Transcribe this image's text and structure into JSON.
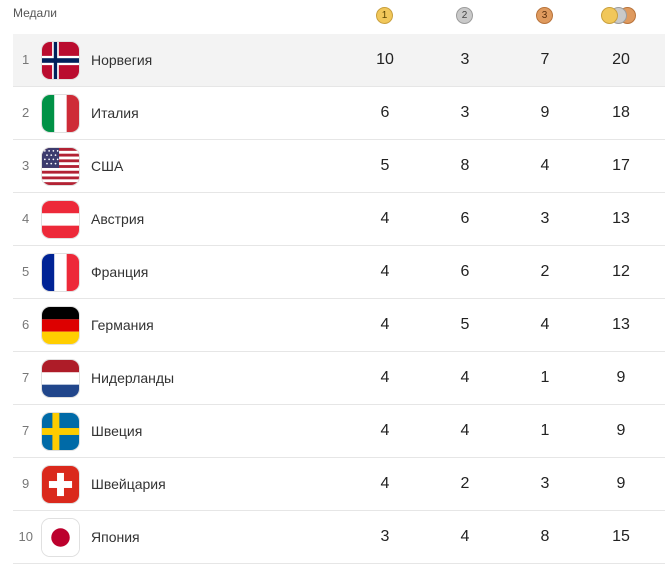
{
  "header": {
    "title": "Медали",
    "gold_label": "1",
    "silver_label": "2",
    "bronze_label": "3"
  },
  "colors": {
    "gold": "#f1c75a",
    "silver": "#c9c9c9",
    "bronze": "#df9a5e",
    "highlight_row": "#f3f3f3"
  },
  "rows": [
    {
      "rank": "1",
      "country": "Норвегия",
      "flag": "norway-flag-icon",
      "gold": "10",
      "silver": "3",
      "bronze": "7",
      "total": "20"
    },
    {
      "rank": "2",
      "country": "Италия",
      "flag": "italy-flag-icon",
      "gold": "6",
      "silver": "3",
      "bronze": "9",
      "total": "18"
    },
    {
      "rank": "3",
      "country": "США",
      "flag": "usa-flag-icon",
      "gold": "5",
      "silver": "8",
      "bronze": "4",
      "total": "17"
    },
    {
      "rank": "4",
      "country": "Австрия",
      "flag": "austria-flag-icon",
      "gold": "4",
      "silver": "6",
      "bronze": "3",
      "total": "13"
    },
    {
      "rank": "5",
      "country": "Франция",
      "flag": "france-flag-icon",
      "gold": "4",
      "silver": "6",
      "bronze": "2",
      "total": "12"
    },
    {
      "rank": "6",
      "country": "Германия",
      "flag": "germany-flag-icon",
      "gold": "4",
      "silver": "5",
      "bronze": "4",
      "total": "13"
    },
    {
      "rank": "7",
      "country": "Нидерланды",
      "flag": "netherlands-flag-icon",
      "gold": "4",
      "silver": "4",
      "bronze": "1",
      "total": "9"
    },
    {
      "rank": "7",
      "country": "Швеция",
      "flag": "sweden-flag-icon",
      "gold": "4",
      "silver": "4",
      "bronze": "1",
      "total": "9"
    },
    {
      "rank": "9",
      "country": "Швейцария",
      "flag": "switzerland-flag-icon",
      "gold": "4",
      "silver": "2",
      "bronze": "3",
      "total": "9"
    },
    {
      "rank": "10",
      "country": "Япония",
      "flag": "japan-flag-icon",
      "gold": "3",
      "silver": "4",
      "bronze": "8",
      "total": "15"
    }
  ]
}
